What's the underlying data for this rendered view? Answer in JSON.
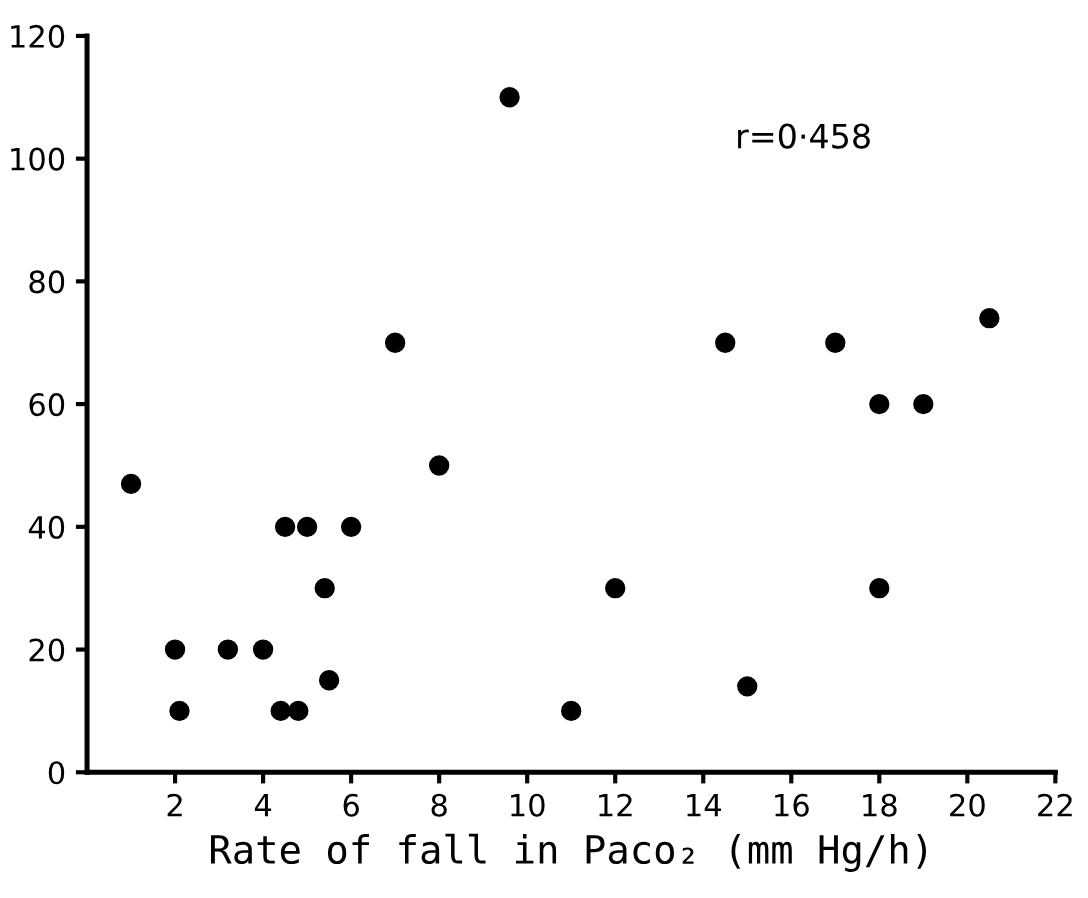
{
  "chart_data": {
    "type": "scatter",
    "xlabel": "Rate of fall in Paco₂ (mm Hg/h)",
    "x": [
      1,
      2,
      2.1,
      3.2,
      4,
      4.4,
      4.8,
      4.5,
      5,
      6,
      5.4,
      5.5,
      7,
      8,
      9.6,
      11,
      12,
      14.5,
      15,
      17,
      18,
      18,
      19,
      20.5
    ],
    "values": [
      47,
      20,
      10,
      20,
      20,
      10,
      10,
      40,
      40,
      40,
      30,
      15,
      70,
      50,
      110,
      10,
      30,
      70,
      14,
      70,
      60,
      30,
      60,
      74
    ],
    "color": "#000000",
    "marker": "circle",
    "xlim": [
      0,
      22
    ],
    "xticks": [
      2,
      4,
      6,
      8,
      10,
      12,
      14,
      16,
      18,
      20,
      22
    ],
    "ylim": [
      0,
      120
    ],
    "yticks": [
      0,
      20,
      40,
      60,
      80,
      100,
      120
    ],
    "grid": false,
    "annotations": [
      "r=0·458"
    ]
  }
}
